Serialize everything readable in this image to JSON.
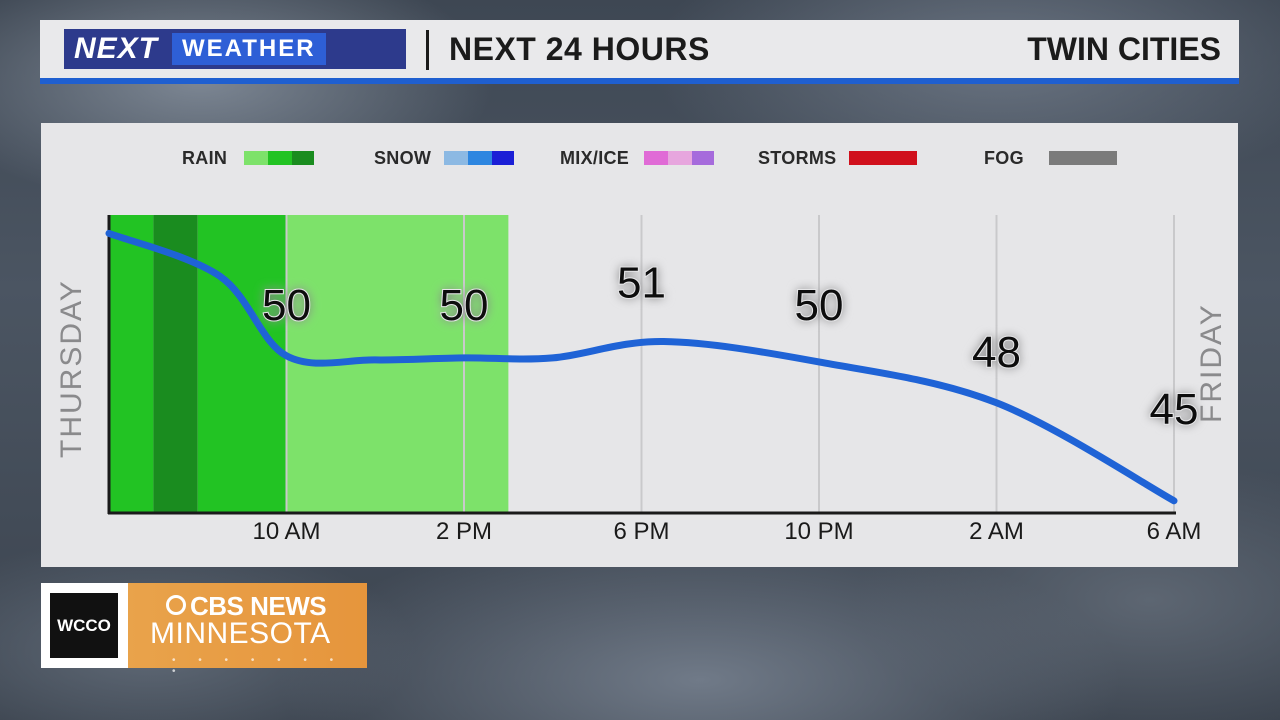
{
  "header": {
    "logo_next": "NEXT",
    "logo_weather": "WEATHER",
    "title": "NEXT 24 HOURS",
    "location": "TWIN CITIES"
  },
  "legend": {
    "items": [
      {
        "label": "RAIN",
        "colors": [
          "#7de26a",
          "#22c323",
          "#1a8c1f"
        ]
      },
      {
        "label": "SNOW",
        "colors": [
          "#8cb9e3",
          "#2d86e0",
          "#1b1fd6"
        ]
      },
      {
        "label": "MIX/ICE",
        "colors": [
          "#e06bd6",
          "#e7a6de",
          "#a66bdc"
        ]
      },
      {
        "label": "STORMS",
        "colors": [
          "#d0101c"
        ]
      },
      {
        "label": "FOG",
        "colors": [
          "#7b7b7b"
        ]
      }
    ]
  },
  "chart_data": {
    "type": "line",
    "x_ticks": [
      "10 AM",
      "2 PM",
      "6 PM",
      "10 PM",
      "2 AM",
      "6 AM"
    ],
    "day_labels": {
      "start": "THURSDAY",
      "end": "FRIDAY"
    },
    "series": [
      {
        "values": [
          {
            "time": "6 AM",
            "value": null
          },
          {
            "time": "10 AM",
            "value": 50
          },
          {
            "time": "2 PM",
            "value": 50
          },
          {
            "time": "6 PM",
            "value": 51
          },
          {
            "time": "10 PM",
            "value": 50
          },
          {
            "time": "2 AM",
            "value": 48
          },
          {
            "time": "6 AM",
            "value": 45
          }
        ]
      }
    ],
    "labeled_points": [
      {
        "time": "10 AM",
        "value": 50
      },
      {
        "time": "2 PM",
        "value": 50
      },
      {
        "time": "6 PM",
        "value": 51
      },
      {
        "time": "10 PM",
        "value": 50
      },
      {
        "time": "2 AM",
        "value": 48
      },
      {
        "time": "6 AM",
        "value": 45
      }
    ],
    "precip_bands": [
      {
        "type": "rain",
        "intensity": "moderate",
        "start_hour": 0,
        "end_hour": 1
      },
      {
        "type": "rain",
        "intensity": "heavy",
        "start_hour": 1,
        "end_hour": 2
      },
      {
        "type": "rain",
        "intensity": "moderate",
        "start_hour": 2,
        "end_hour": 4
      },
      {
        "type": "rain",
        "intensity": "light",
        "start_hour": 4,
        "end_hour": 9
      }
    ],
    "line_color": "#1f63d6",
    "grid": true
  },
  "brand": {
    "station": "WCCO",
    "network": "CBS NEWS",
    "region": "MINNESOTA"
  }
}
